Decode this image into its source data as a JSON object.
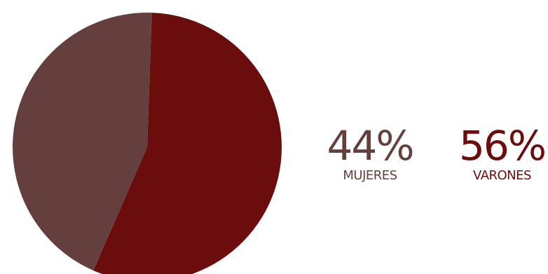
{
  "chart_data": {
    "type": "pie",
    "title": "",
    "legend_placement": "right",
    "slices": [
      {
        "label": "MUJERES",
        "value": 44,
        "display": "44%",
        "color": "#653f3e"
      },
      {
        "label": "VARONES",
        "value": 56,
        "display": "56%",
        "color": "#6b0d0d"
      }
    ]
  }
}
